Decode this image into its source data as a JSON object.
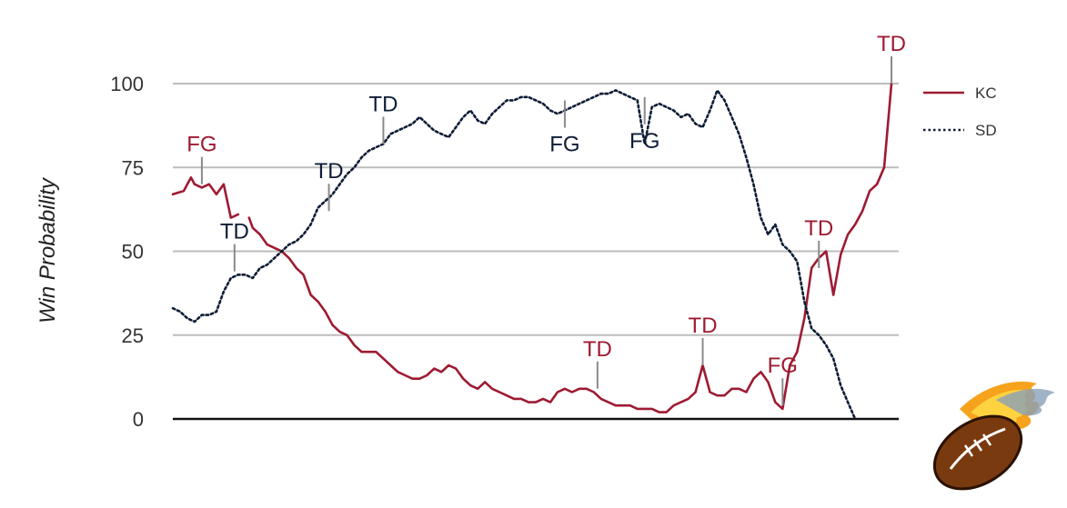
{
  "chart_data": {
    "type": "line",
    "title": "",
    "xlabel": "",
    "ylabel": "Win Probability",
    "ylim": [
      0,
      100
    ],
    "xlim": [
      0,
      100
    ],
    "yticks": [
      0,
      25,
      50,
      75,
      100
    ],
    "grid": true,
    "legend_position": "top-right",
    "series": [
      {
        "name": "KC",
        "color": "#9e1b32",
        "style": "solid",
        "x": [
          0,
          1.5,
          2.5,
          3,
          4,
          5,
          6,
          7,
          8,
          9,
          9.5,
          10.5,
          11,
          12,
          13,
          14,
          15,
          16,
          17,
          18,
          19,
          20,
          21,
          22,
          23,
          24,
          25,
          26,
          27,
          28,
          29,
          30,
          31,
          32,
          33,
          34,
          35,
          36,
          37,
          38,
          39,
          40,
          41,
          42,
          43,
          44,
          45,
          46,
          47,
          48,
          49,
          50,
          51,
          52,
          53,
          54,
          55,
          56,
          57,
          58,
          59,
          60,
          61,
          62,
          63,
          64,
          65,
          66,
          67,
          68,
          69,
          70,
          71,
          72,
          73,
          74,
          75,
          76,
          77,
          78,
          79,
          80,
          81,
          82,
          83,
          84,
          85,
          86,
          87,
          88,
          89,
          90,
          91,
          92,
          93,
          94,
          95,
          96,
          97,
          98,
          99
        ],
        "values": [
          67,
          68,
          72,
          70,
          69,
          70,
          67,
          70,
          60,
          61,
          null,
          60,
          57,
          55,
          52,
          51,
          50,
          48,
          45,
          43,
          37,
          35,
          32,
          28,
          26,
          25,
          22,
          20,
          20,
          20,
          18,
          16,
          14,
          13,
          12,
          12,
          13,
          15,
          14,
          16,
          15,
          12,
          10,
          9,
          11,
          9,
          8,
          7,
          6,
          6,
          5,
          5,
          6,
          5,
          8,
          9,
          8,
          9,
          9,
          8,
          6,
          5,
          4,
          4,
          4,
          3,
          3,
          3,
          2,
          2,
          4,
          5,
          6,
          8,
          16,
          8,
          7,
          7,
          9,
          9,
          8,
          12,
          14,
          11,
          5,
          3,
          16,
          20,
          30,
          45,
          48,
          50,
          37,
          49,
          55,
          58,
          62,
          68,
          70,
          75,
          100
        ]
      },
      {
        "name": "SD",
        "color": "#0d1c36",
        "style": "dotted",
        "x": [
          0,
          1,
          2,
          3,
          4,
          5,
          6,
          7,
          8,
          9,
          10,
          11,
          12,
          13,
          14,
          15,
          16,
          17,
          18,
          19,
          20,
          21,
          22,
          23,
          24,
          25,
          26,
          27,
          28,
          29,
          30,
          31,
          32,
          33,
          34,
          35,
          36,
          37,
          38,
          39,
          40,
          41,
          42,
          43,
          44,
          45,
          46,
          47,
          48,
          49,
          50,
          51,
          52,
          53,
          54,
          55,
          56,
          57,
          58,
          59,
          60,
          61,
          62,
          63,
          64,
          65,
          66,
          67,
          68,
          69,
          70,
          71,
          72,
          73,
          74,
          75,
          76,
          77,
          78,
          79,
          80,
          81,
          82,
          83,
          84,
          85,
          86,
          87,
          88,
          89,
          90,
          91,
          92,
          93,
          94,
          95,
          96,
          97,
          98,
          98.5,
          99
        ],
        "values": [
          33,
          32,
          30,
          29,
          31,
          31,
          32,
          38,
          42,
          43,
          43,
          42,
          45,
          46,
          48,
          50,
          52,
          53,
          55,
          58,
          63,
          65,
          67,
          70,
          73,
          75,
          78,
          80,
          81,
          82,
          85,
          86,
          87,
          88,
          90,
          88,
          86,
          85,
          84,
          87,
          90,
          92,
          89,
          88,
          91,
          93,
          95,
          95,
          96,
          96,
          95,
          94,
          92,
          91,
          92,
          93,
          94,
          95,
          96,
          97,
          97,
          98,
          97,
          96,
          95,
          82,
          93,
          94,
          93,
          92,
          90,
          91,
          88,
          87,
          92,
          98,
          95,
          90,
          85,
          78,
          70,
          60,
          55,
          58,
          52,
          50,
          47,
          35,
          27,
          25,
          22,
          18,
          10,
          5,
          0,
          null,
          null,
          null,
          null,
          null,
          null
        ],
        "label_visible": "SD"
      }
    ],
    "annotations": [
      {
        "text": "FG",
        "team": "KC",
        "x": 4,
        "y": 70
      },
      {
        "text": "TD",
        "team": "SD",
        "x": 8.5,
        "y": 44
      },
      {
        "text": "TD",
        "team": "SD",
        "x": 21.5,
        "y": 62
      },
      {
        "text": "TD",
        "team": "SD",
        "x": 29,
        "y": 82
      },
      {
        "text": "FG",
        "team": "SD",
        "x": 54,
        "y": 95
      },
      {
        "text": "FG",
        "team": "SD",
        "x": 65,
        "y": 96
      },
      {
        "text": "TD",
        "team": "KC",
        "x": 58.5,
        "y": 9
      },
      {
        "text": "TD",
        "team": "KC",
        "x": 73,
        "y": 16
      },
      {
        "text": "FG",
        "team": "KC",
        "x": 84,
        "y": 4
      },
      {
        "text": "TD",
        "team": "KC",
        "x": 89,
        "y": 45
      },
      {
        "text": "TD",
        "team": "KC",
        "x": 99,
        "y": 100
      }
    ]
  },
  "decoration": {
    "logo": "flaming-football-icon"
  }
}
